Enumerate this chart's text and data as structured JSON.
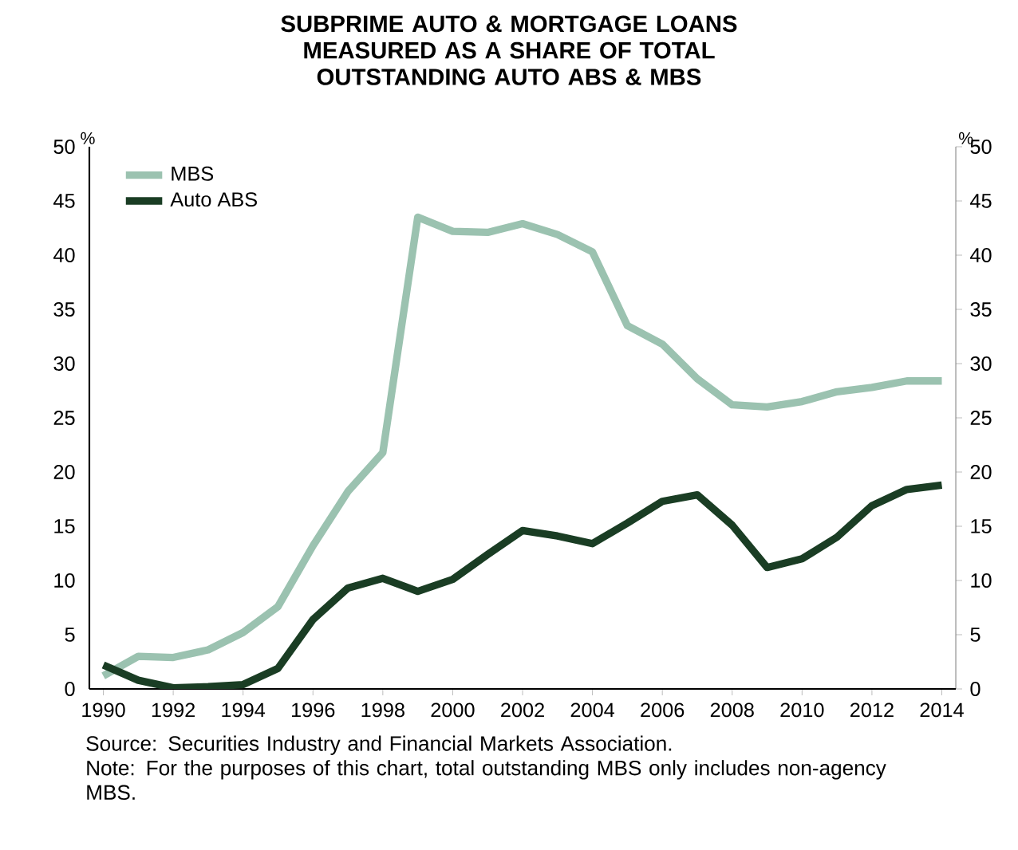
{
  "chart_data": {
    "type": "line",
    "title": "SUBPRIME AUTO & MORTGAGE LOANS MEASURED AS A SHARE OF TOTAL OUTSTANDING AUTO ABS & MBS",
    "ylabel": "%",
    "y2label": "%",
    "x": [
      1990,
      1991,
      1992,
      1993,
      1994,
      1995,
      1996,
      1997,
      1998,
      1999,
      2000,
      2001,
      2002,
      2003,
      2004,
      2005,
      2006,
      2007,
      2008,
      2009,
      2010,
      2011,
      2012,
      2013,
      2014
    ],
    "xlim": [
      1989.6,
      2014.4
    ],
    "xticks": [
      1990,
      1992,
      1994,
      1996,
      1998,
      2000,
      2002,
      2004,
      2006,
      2008,
      2010,
      2012,
      2014
    ],
    "ylim": [
      0,
      50
    ],
    "yticks": [
      0,
      5,
      10,
      15,
      20,
      25,
      30,
      35,
      40,
      45,
      50
    ],
    "y2lim": [
      0,
      50
    ],
    "y2ticks": [
      0,
      5,
      10,
      15,
      20,
      25,
      30,
      35,
      40,
      45,
      50
    ],
    "series": [
      {
        "name": "MBS",
        "color": "#9bc2b0",
        "values": [
          1.2,
          3.0,
          2.9,
          3.6,
          5.2,
          7.6,
          13.2,
          18.2,
          21.8,
          43.5,
          42.2,
          42.1,
          42.9,
          41.9,
          40.3,
          33.5,
          31.8,
          28.6,
          26.2,
          26.0,
          26.5,
          27.4,
          27.8,
          28.4,
          28.4
        ]
      },
      {
        "name": "Auto ABS",
        "color": "#1a3d24",
        "values": [
          2.2,
          0.8,
          0.1,
          0.2,
          0.4,
          1.9,
          6.4,
          9.3,
          10.2,
          9.0,
          10.1,
          12.4,
          14.6,
          14.1,
          13.4,
          15.3,
          17.3,
          17.9,
          15.1,
          11.2,
          12.0,
          14.0,
          16.9,
          18.4,
          18.8
        ]
      }
    ],
    "legend": "top left",
    "grid": false,
    "annotations": [
      "Source: Securities Industry and Financial Markets Association.",
      "Note: For the purposes of this chart, total outstanding MBS only includes non-agency MBS."
    ]
  }
}
